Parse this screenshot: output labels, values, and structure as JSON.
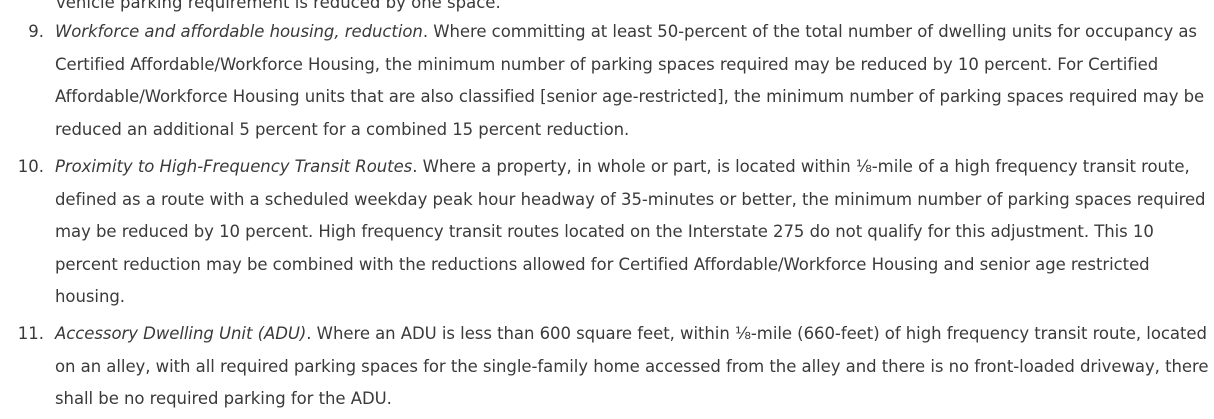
{
  "clipped_prev_text": "vehicle parking requirement is reduced by one space.",
  "items": [
    {
      "number": "9.",
      "label": "Workforce and affordable housing, reduction",
      "label_suffix": ".",
      "text": " Where committing at least 50-percent of the total number of dwelling units for occupancy as Certified Affordable/Workforce Housing, the minimum number of parking spaces required may be reduced by 10 percent. For Certified Affordable/Workforce Housing units that are also classified [senior age-restricted], the minimum number of parking spaces required may be reduced an additional 5 percent for a combined 15 percent reduction."
    },
    {
      "number": "10.",
      "label": "Proximity to High-Frequency Transit Routes",
      "label_suffix": ".",
      "text": " Where a property, in whole or part, is located within ⅛-mile of a high frequency transit route, defined as a route with a scheduled weekday peak hour headway of 35-minutes or better, the minimum number of parking spaces required may be reduced by 10 percent. High frequency transit routes located on the Interstate 275 do not qualify for this adjustment. This 10 percent reduction may be combined with the reductions allowed for Certified Affordable/Workforce Housing and senior age restricted housing."
    },
    {
      "number": "11.",
      "label": "Accessory Dwelling Unit (ADU)",
      "label_suffix": ".",
      "text": " Where an ADU is less than 600 square feet, within ⅛-mile (660-feet) of high frequency transit route, located on an alley, with all required parking spaces for the single-family home accessed from the alley and there is no front-loaded driveway, there shall be no required parking for the ADU."
    }
  ]
}
